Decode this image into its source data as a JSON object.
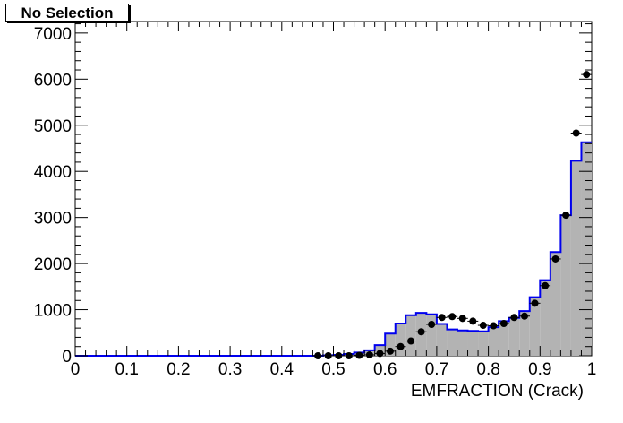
{
  "title": "No Selection",
  "chart_data": {
    "type": "bar",
    "xlabel": "EMFRACTION (Crack)",
    "ylabel": "",
    "xlim": [
      0,
      1
    ],
    "ylim": [
      0,
      7250
    ],
    "grid": false,
    "x_ticks": [
      "0",
      "0.1",
      "0.2",
      "0.3",
      "0.4",
      "0.5",
      "0.6",
      "0.7",
      "0.8",
      "0.9",
      "1"
    ],
    "y_ticks": [
      "0",
      "1000",
      "2000",
      "3000",
      "4000",
      "5000",
      "6000",
      "7000"
    ],
    "series": [
      {
        "kind": "histogram",
        "fill_color": "#b3b3b3",
        "line_color": "#0000ee",
        "bin_width": 0.02,
        "bin_starts": [
          0.0,
          0.02,
          0.04,
          0.06,
          0.08,
          0.1,
          0.12,
          0.14,
          0.16,
          0.18,
          0.2,
          0.22,
          0.24,
          0.26,
          0.28,
          0.3,
          0.32,
          0.34,
          0.36,
          0.38,
          0.4,
          0.42,
          0.44,
          0.46,
          0.48,
          0.5,
          0.52,
          0.54,
          0.56,
          0.58,
          0.6,
          0.62,
          0.64,
          0.66,
          0.68,
          0.7,
          0.72,
          0.74,
          0.76,
          0.78,
          0.8,
          0.82,
          0.84,
          0.86,
          0.88,
          0.9,
          0.92,
          0.94,
          0.96,
          0.98
        ],
        "values": [
          0,
          0,
          0,
          0,
          0,
          0,
          0,
          0,
          0,
          0,
          0,
          0,
          0,
          0,
          0,
          0,
          0,
          0,
          0,
          0,
          0,
          0,
          0,
          0,
          10,
          20,
          40,
          70,
          120,
          230,
          480,
          700,
          880,
          930,
          900,
          690,
          570,
          550,
          540,
          530,
          620,
          750,
          820,
          970,
          1270,
          1640,
          2250,
          3050,
          4230,
          4630
        ]
      },
      {
        "kind": "points",
        "color": "#000000",
        "x": [
          0.47,
          0.49,
          0.51,
          0.53,
          0.55,
          0.57,
          0.59,
          0.61,
          0.63,
          0.65,
          0.67,
          0.69,
          0.71,
          0.73,
          0.75,
          0.77,
          0.79,
          0.81,
          0.83,
          0.85,
          0.87,
          0.89,
          0.91,
          0.93,
          0.95,
          0.97,
          0.99
        ],
        "y": [
          0,
          0,
          0,
          0,
          10,
          20,
          50,
          100,
          200,
          320,
          520,
          680,
          830,
          850,
          810,
          750,
          660,
          650,
          700,
          830,
          860,
          1140,
          1520,
          2100,
          3050,
          4830,
          6100
        ]
      }
    ]
  }
}
